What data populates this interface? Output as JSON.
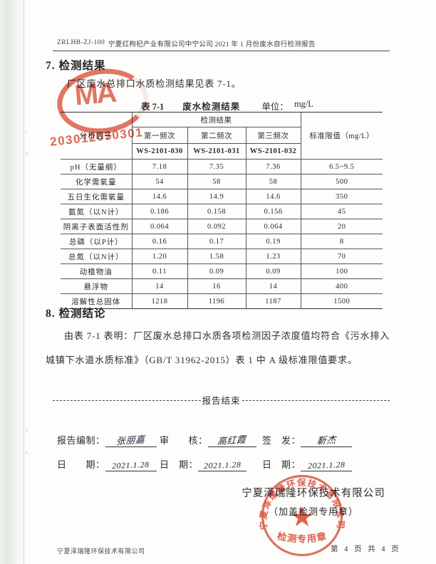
{
  "page": {
    "header": {
      "doc_no": "ZRLHB-ZJ-100",
      "title": "宁夏红枸杞产业有限公司中宁公司 2021 年 1 月份废水自行检测报告"
    },
    "section7": {
      "heading": "7. 检测结果",
      "intro": "厂区废水总排口水质检测结果见表 7-1。"
    },
    "table": {
      "caption_label": "表 7-1",
      "caption_title": "废水检测结果",
      "unit_label": "单位：",
      "unit_value": "mg/L",
      "header": {
        "factor": "分析因子",
        "result_group": "检测结果",
        "freq1": "第一频次",
        "freq2": "第二频次",
        "freq3": "第三频次",
        "sample1": "WS-2101-030",
        "sample2": "WS-2101-031",
        "sample3": "WS-2101-032",
        "limit": "标准限值（mg/L）"
      },
      "rows": [
        {
          "factor": "pH（无量纲）",
          "v1": "7.18",
          "v2": "7.35",
          "v3": "7.36",
          "limit": "6.5~9.5"
        },
        {
          "factor": "化学需氧量",
          "v1": "54",
          "v2": "58",
          "v3": "58",
          "limit": "500"
        },
        {
          "factor": "五日生化需氧量",
          "v1": "14.6",
          "v2": "14.9",
          "v3": "14.6",
          "limit": "350"
        },
        {
          "factor": "氨氮（以N计）",
          "v1": "0.186",
          "v2": "0.158",
          "v3": "0.156",
          "limit": "45"
        },
        {
          "factor": "阴离子表面活性剂",
          "v1": "0.064",
          "v2": "0.092",
          "v3": "0.064",
          "limit": "20"
        },
        {
          "factor": "总磷（以P计）",
          "v1": "0.16",
          "v2": "0.17",
          "v3": "0.19",
          "limit": "8"
        },
        {
          "factor": "总氮（以N计）",
          "v1": "1.20",
          "v2": "1.58",
          "v3": "1.23",
          "limit": "70"
        },
        {
          "factor": "动植物油",
          "v1": "0.11",
          "v2": "0.09",
          "v3": "0.09",
          "limit": "100"
        },
        {
          "factor": "悬浮物",
          "v1": "14",
          "v2": "16",
          "v3": "14",
          "limit": "400"
        },
        {
          "factor": "溶解性总固体",
          "v1": "1218",
          "v2": "1196",
          "v3": "1187",
          "limit": "1500"
        }
      ]
    },
    "section8": {
      "heading": "8. 检测结论",
      "body": "由表 7-1 表明：厂区废水总排口水质各项检测因子浓度值均符合《污水排入城镇下水道水质标准》（GB/T 31962-2015）表 1 中 A 级标准限值要求。"
    },
    "divider": {
      "label": "报告结束"
    },
    "signoff": {
      "prepared_label": "报告编制：",
      "prepared_sign": "张丽嘉",
      "review_label": "审　　核：",
      "review_sign": "高红霞",
      "issue_label": "签　发：",
      "issue_sign": "靳杰",
      "date_label": "日　　期：",
      "date_label2": "日　期：",
      "date_label3": "日　期：",
      "date1": "2021.1.28",
      "date2": "2021.1.28",
      "date3": "2021.1.28"
    },
    "company_block": {
      "name": "宁夏泽瑞隆环保技术有限公司",
      "note": "（加盖检测专用章）"
    },
    "stamps": {
      "cma_letters": "MA",
      "cma_number": "203012050301",
      "seal_company": "宁夏泽瑞隆环保技术有限公司",
      "seal_title": "检测专用章",
      "seal_star": "★",
      "seal_color": "#d9452f"
    },
    "footer": {
      "company": "宁夏泽瑞隆环保技术有限公司",
      "page_info": "第 4 页 共 4 页"
    }
  }
}
